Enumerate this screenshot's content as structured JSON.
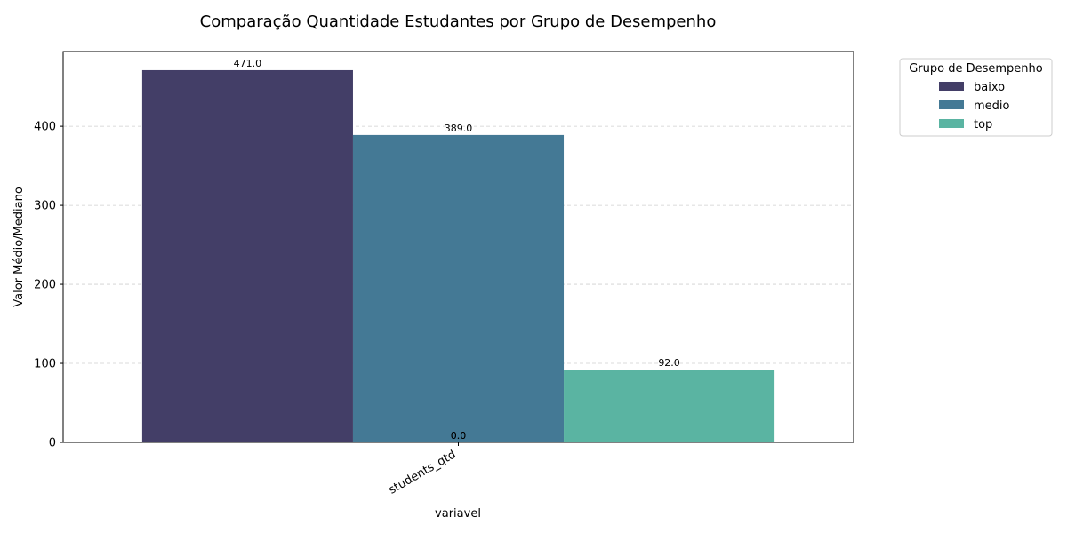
{
  "chart_data": {
    "type": "bar",
    "title": "Comparação Quantidade Estudantes por Grupo de Desempenho",
    "xlabel": "variavel",
    "ylabel": "Valor Médio/Mediano",
    "categories": [
      "students_qtd"
    ],
    "ylim": [
      0,
      494.55
    ],
    "yticks": [
      0,
      100,
      200,
      300,
      400
    ],
    "grid": true,
    "legend": {
      "title": "Grupo de Desempenho",
      "placement": "outside-top-right"
    },
    "series": [
      {
        "name": "baixo",
        "values": [
          471.0
        ],
        "color": "#433e67",
        "label": "471.0"
      },
      {
        "name": "medio",
        "values": [
          389.0
        ],
        "color": "#447995",
        "label": "389.0"
      },
      {
        "name": "top",
        "values": [
          92.0
        ],
        "color": "#5ab4a2",
        "label": "92.0"
      }
    ],
    "annotations": [
      "0.0",
      "0.0"
    ]
  }
}
